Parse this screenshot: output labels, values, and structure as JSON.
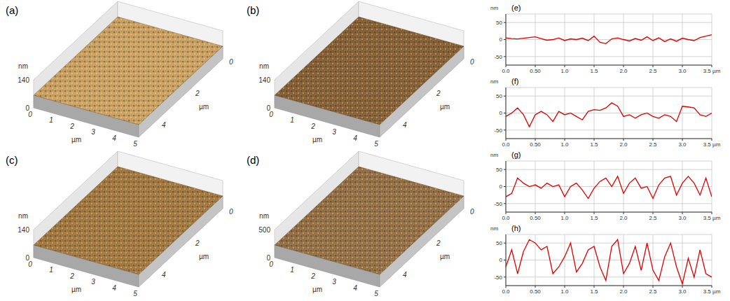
{
  "chart_data": [
    {
      "type": "surface",
      "panel": "(a)",
      "color": "#c89850",
      "xlabel": "µm",
      "ylabel": "µm",
      "zlabel": "nm",
      "xlim": [
        0,
        5
      ],
      "xticks": [
        0,
        1,
        2,
        3,
        4,
        5
      ],
      "ylim": [
        0,
        5
      ],
      "yticks": [
        0,
        2,
        4
      ],
      "zlim": [
        0,
        140
      ],
      "zticks": [
        0,
        140
      ]
    },
    {
      "type": "surface",
      "panel": "(b)",
      "color": "#7a4e1e",
      "xlabel": "µm",
      "ylabel": "µm",
      "zlabel": "nm",
      "xlim": [
        0,
        5
      ],
      "xticks": [
        0,
        1,
        2,
        3,
        4,
        5
      ],
      "ylim": [
        0,
        5
      ],
      "yticks": [
        0,
        2,
        4
      ],
      "zlim": [
        0,
        140
      ],
      "zticks": [
        0,
        140
      ]
    },
    {
      "type": "surface",
      "panel": "(c)",
      "color": "#9a6a2a",
      "xlabel": "µm",
      "ylabel": "µm",
      "zlabel": "nm",
      "xlim": [
        0,
        5
      ],
      "xticks": [
        0,
        1,
        2,
        3,
        4,
        5
      ],
      "ylim": [
        0,
        5
      ],
      "yticks": [
        0,
        2,
        4
      ],
      "zlim": [
        0,
        140
      ],
      "zticks": [
        0,
        140
      ]
    },
    {
      "type": "surface",
      "panel": "(d)",
      "color": "#8a6030",
      "xlabel": "µm",
      "ylabel": "µm",
      "zlabel": "nm",
      "xlim": [
        0,
        5
      ],
      "xticks": [
        0,
        1,
        2,
        3,
        4,
        5
      ],
      "ylim": [
        0,
        5
      ],
      "yticks": [
        0,
        2,
        4
      ],
      "zlim": [
        0,
        500
      ],
      "zticks": [
        0,
        500
      ]
    },
    {
      "type": "line",
      "panel": "(e)",
      "color": "#e00000",
      "ylabel": "nm",
      "grid": true,
      "xlim": [
        0,
        3.5
      ],
      "xticks": [
        {
          "value": 0,
          "label": "0.0"
        },
        {
          "value": 0.5,
          "label": "0.50"
        },
        {
          "value": 1,
          "label": "1.0"
        },
        1.5,
        {
          "value": 2,
          "label": "2.0"
        },
        2.5,
        {
          "value": 3,
          "label": "3.0"
        },
        {
          "value": 3.5,
          "label": "3.5 µm"
        }
      ],
      "ylim": [
        -75,
        75
      ],
      "yticks": [
        -50,
        0,
        50
      ],
      "x": [
        0,
        0.1,
        0.2,
        0.3,
        0.4,
        0.5,
        0.6,
        0.7,
        0.8,
        0.9,
        1,
        1.1,
        1.2,
        1.3,
        1.4,
        1.5,
        1.6,
        1.7,
        1.8,
        1.9,
        2,
        2.1,
        2.2,
        2.3,
        2.4,
        2.5,
        2.6,
        2.7,
        2.8,
        2.9,
        3,
        3.1,
        3.2,
        3.3,
        3.4,
        3.5
      ],
      "values": [
        5,
        3,
        2,
        4,
        6,
        8,
        3,
        -2,
        0,
        5,
        -3,
        2,
        0,
        4,
        -3,
        10,
        -8,
        -12,
        2,
        5,
        0,
        -4,
        3,
        -2,
        8,
        -3,
        5,
        -6,
        2,
        -5,
        4,
        0,
        -3,
        6,
        10,
        14
      ]
    },
    {
      "type": "line",
      "panel": "(f)",
      "color": "#e00000",
      "ylabel": "nm",
      "grid": true,
      "xlim": [
        0,
        3.5
      ],
      "xticks": [
        {
          "value": 0,
          "label": "0.0"
        },
        {
          "value": 0.5,
          "label": "0.50"
        },
        {
          "value": 1,
          "label": "1.0"
        },
        1.5,
        {
          "value": 2,
          "label": "2.0"
        },
        2.5,
        {
          "value": 3,
          "label": "3.0"
        },
        {
          "value": 3.5,
          "label": "3.5 µm"
        }
      ],
      "ylim": [
        -75,
        75
      ],
      "yticks": [
        -50,
        0,
        50
      ],
      "x": [
        0,
        0.1,
        0.2,
        0.3,
        0.4,
        0.5,
        0.6,
        0.7,
        0.8,
        0.9,
        1,
        1.1,
        1.2,
        1.3,
        1.4,
        1.5,
        1.6,
        1.7,
        1.8,
        1.9,
        2,
        2.1,
        2.2,
        2.3,
        2.4,
        2.5,
        2.6,
        2.7,
        2.8,
        2.9,
        3,
        3.1,
        3.2,
        3.3,
        3.4,
        3.5
      ],
      "values": [
        -10,
        0,
        15,
        -5,
        -40,
        -5,
        5,
        -5,
        -25,
        5,
        -5,
        0,
        -10,
        -20,
        5,
        10,
        8,
        15,
        30,
        20,
        -10,
        -5,
        -15,
        -5,
        0,
        -10,
        -15,
        -5,
        -10,
        -25,
        20,
        18,
        15,
        -5,
        -10,
        0
      ]
    },
    {
      "type": "line",
      "panel": "(g)",
      "color": "#e00000",
      "ylabel": "nm",
      "grid": true,
      "xlim": [
        0,
        3.5
      ],
      "xticks": [
        {
          "value": 0,
          "label": "0.0"
        },
        {
          "value": 0.5,
          "label": "0.50"
        },
        {
          "value": 1,
          "label": "1.0"
        },
        1.5,
        {
          "value": 2,
          "label": "2.0"
        },
        2.5,
        {
          "value": 3,
          "label": "3.0"
        },
        {
          "value": 3.5,
          "label": "3.5 µm"
        }
      ],
      "ylim": [
        -75,
        75
      ],
      "yticks": [
        -50,
        0,
        50
      ],
      "x": [
        0,
        0.1,
        0.2,
        0.3,
        0.4,
        0.5,
        0.6,
        0.7,
        0.8,
        0.9,
        1,
        1.1,
        1.2,
        1.3,
        1.4,
        1.5,
        1.6,
        1.7,
        1.8,
        1.9,
        2,
        2.1,
        2.2,
        2.3,
        2.4,
        2.5,
        2.6,
        2.7,
        2.8,
        2.9,
        3,
        3.1,
        3.2,
        3.3,
        3.4,
        3.5
      ],
      "values": [
        -30,
        -20,
        25,
        10,
        0,
        5,
        -5,
        10,
        0,
        5,
        -30,
        0,
        10,
        -10,
        -35,
        -5,
        15,
        25,
        0,
        30,
        -20,
        10,
        25,
        -5,
        0,
        -35,
        5,
        25,
        30,
        -25,
        10,
        30,
        10,
        -25,
        25,
        -30
      ]
    },
    {
      "type": "line",
      "panel": "(h)",
      "color": "#e00000",
      "ylabel": "nm",
      "grid": true,
      "xlim": [
        0,
        3.5
      ],
      "xticks": [
        {
          "value": 0,
          "label": "0.0"
        },
        {
          "value": 0.5,
          "label": "0.50"
        },
        {
          "value": 1,
          "label": "1.0"
        },
        1.5,
        {
          "value": 2,
          "label": "2.0"
        },
        2.5,
        {
          "value": 3,
          "label": "3.0"
        },
        {
          "value": 3.5,
          "label": "3.5 µm"
        }
      ],
      "ylim": [
        -75,
        75
      ],
      "yticks": [
        -50,
        0,
        50
      ],
      "x": [
        0,
        0.1,
        0.2,
        0.3,
        0.4,
        0.5,
        0.6,
        0.7,
        0.8,
        0.9,
        1,
        1.1,
        1.2,
        1.3,
        1.4,
        1.5,
        1.6,
        1.7,
        1.8,
        1.9,
        2,
        2.1,
        2.2,
        2.3,
        2.4,
        2.5,
        2.6,
        2.7,
        2.8,
        2.9,
        3,
        3.1,
        3.2,
        3.3,
        3.4,
        3.5
      ],
      "values": [
        -20,
        30,
        -40,
        25,
        60,
        50,
        30,
        40,
        -40,
        -20,
        10,
        50,
        -35,
        -10,
        30,
        40,
        -20,
        -60,
        40,
        60,
        -40,
        -10,
        40,
        -30,
        50,
        -30,
        -60,
        10,
        50,
        -20,
        -70,
        5,
        -50,
        30,
        -40,
        -50
      ]
    }
  ]
}
